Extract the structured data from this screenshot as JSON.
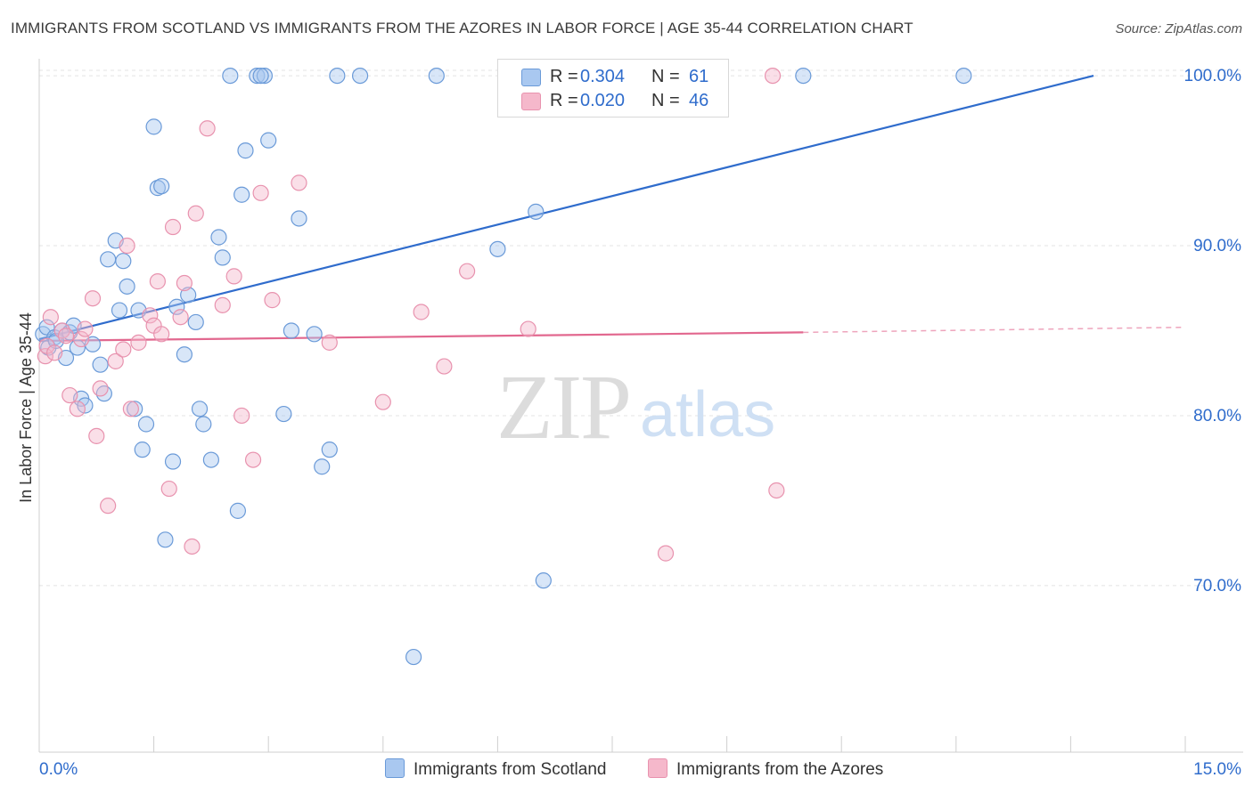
{
  "title": "IMMIGRANTS FROM SCOTLAND VS IMMIGRANTS FROM THE AZORES IN LABOR FORCE | AGE 35-44 CORRELATION CHART",
  "source": "Source: ZipAtlas.com",
  "watermark": {
    "zip": "ZIP",
    "atlas": "atlas"
  },
  "legend": {
    "rows": [
      {
        "r_label": "R = ",
        "r_value": "0.304",
        "n_label": "N = ",
        "n_value": "61"
      },
      {
        "r_label": "R = ",
        "r_value": "0.020",
        "n_label": "N = ",
        "n_value": "46"
      }
    ]
  },
  "bottom_legend": [
    "Immigrants from Scotland",
    "Immigrants from the Azores"
  ],
  "colors": {
    "scotland_fill": "#a9c8f0",
    "scotland_stroke": "#6a9ad8",
    "scotland_line": "#2f6ccc",
    "azores_fill": "#f5b8cb",
    "azores_stroke": "#e892ae",
    "azores_line": "#e2688f",
    "axis_label": "#2f6ccc",
    "grid": "#e3e3e3"
  },
  "chart_data": {
    "type": "scatter",
    "xlabel": "",
    "ylabel": "In Labor Force | Age 35-44",
    "xlim": [
      0,
      15
    ],
    "ylim": [
      60.2,
      101
    ],
    "x_tick_labels": [
      "0.0%",
      "15.0%"
    ],
    "y_ticks": [
      70,
      80,
      90,
      100
    ],
    "y_tick_labels": [
      "70.0%",
      "80.0%",
      "90.0%",
      "100.0%"
    ],
    "series": [
      {
        "name": "Immigrants from Scotland",
        "r": 0.304,
        "n": 61,
        "trend": {
          "x": [
            0,
            13.8
          ],
          "y": [
            84.5,
            100.0
          ],
          "dashed_to": null
        },
        "points": [
          [
            0.05,
            84.8
          ],
          [
            0.1,
            85.2
          ],
          [
            0.12,
            84.0
          ],
          [
            0.2,
            84.6
          ],
          [
            0.22,
            84.4
          ],
          [
            0.3,
            85.0
          ],
          [
            0.35,
            83.4
          ],
          [
            0.4,
            84.9
          ],
          [
            0.45,
            85.3
          ],
          [
            0.5,
            84.0
          ],
          [
            0.55,
            81.0
          ],
          [
            0.6,
            80.6
          ],
          [
            0.7,
            84.2
          ],
          [
            0.8,
            83.0
          ],
          [
            0.85,
            81.3
          ],
          [
            0.9,
            89.2
          ],
          [
            1.0,
            90.3
          ],
          [
            1.05,
            86.2
          ],
          [
            1.1,
            89.1
          ],
          [
            1.15,
            87.6
          ],
          [
            1.25,
            80.4
          ],
          [
            1.3,
            86.2
          ],
          [
            1.35,
            78.0
          ],
          [
            1.4,
            79.5
          ],
          [
            1.5,
            97.0
          ],
          [
            1.55,
            93.4
          ],
          [
            1.6,
            93.5
          ],
          [
            1.65,
            72.7
          ],
          [
            1.75,
            77.3
          ],
          [
            1.8,
            86.4
          ],
          [
            1.9,
            83.6
          ],
          [
            1.95,
            87.1
          ],
          [
            2.05,
            85.5
          ],
          [
            2.1,
            80.4
          ],
          [
            2.15,
            79.5
          ],
          [
            2.25,
            77.4
          ],
          [
            2.35,
            90.5
          ],
          [
            2.4,
            89.3
          ],
          [
            2.5,
            100.0
          ],
          [
            2.6,
            74.4
          ],
          [
            2.65,
            93.0
          ],
          [
            2.7,
            95.6
          ],
          [
            2.85,
            100.0
          ],
          [
            2.95,
            100.0
          ],
          [
            3.0,
            96.2
          ],
          [
            3.2,
            80.1
          ],
          [
            3.3,
            85.0
          ],
          [
            3.4,
            91.6
          ],
          [
            3.6,
            84.8
          ],
          [
            3.7,
            77.0
          ],
          [
            3.8,
            78.0
          ],
          [
            3.9,
            100.0
          ],
          [
            4.2,
            100.0
          ],
          [
            4.9,
            65.8
          ],
          [
            5.2,
            100.0
          ],
          [
            6.0,
            89.8
          ],
          [
            6.5,
            92.0
          ],
          [
            6.6,
            70.3
          ],
          [
            10.0,
            100.0
          ],
          [
            12.1,
            100.0
          ],
          [
            2.9,
            100.0
          ]
        ]
      },
      {
        "name": "Immigrants from the Azores",
        "r": 0.02,
        "n": 46,
        "trend": {
          "x": [
            0,
            10
          ],
          "y": [
            84.4,
            84.9
          ],
          "dashed_to": [
            15,
            85.2
          ]
        },
        "points": [
          [
            0.08,
            83.5
          ],
          [
            0.1,
            84.1
          ],
          [
            0.15,
            85.8
          ],
          [
            0.2,
            83.7
          ],
          [
            0.3,
            85.0
          ],
          [
            0.35,
            84.7
          ],
          [
            0.4,
            81.2
          ],
          [
            0.5,
            80.4
          ],
          [
            0.55,
            84.5
          ],
          [
            0.6,
            85.1
          ],
          [
            0.7,
            86.9
          ],
          [
            0.75,
            78.8
          ],
          [
            0.8,
            81.6
          ],
          [
            0.9,
            74.7
          ],
          [
            1.0,
            83.2
          ],
          [
            1.1,
            83.9
          ],
          [
            1.15,
            90.0
          ],
          [
            1.2,
            80.4
          ],
          [
            1.3,
            84.3
          ],
          [
            1.45,
            85.9
          ],
          [
            1.5,
            85.3
          ],
          [
            1.55,
            87.9
          ],
          [
            1.6,
            84.8
          ],
          [
            1.7,
            75.7
          ],
          [
            1.75,
            91.1
          ],
          [
            1.85,
            85.8
          ],
          [
            1.9,
            87.8
          ],
          [
            2.0,
            72.3
          ],
          [
            2.05,
            91.9
          ],
          [
            2.2,
            96.9
          ],
          [
            2.4,
            86.5
          ],
          [
            2.55,
            88.2
          ],
          [
            2.65,
            80.0
          ],
          [
            2.8,
            77.4
          ],
          [
            2.9,
            93.1
          ],
          [
            3.05,
            86.8
          ],
          [
            3.4,
            93.7
          ],
          [
            3.8,
            84.3
          ],
          [
            4.5,
            80.8
          ],
          [
            5.0,
            86.1
          ],
          [
            5.3,
            82.9
          ],
          [
            5.6,
            88.5
          ],
          [
            6.4,
            85.1
          ],
          [
            8.2,
            71.9
          ],
          [
            9.6,
            100.0
          ],
          [
            9.65,
            75.6
          ]
        ]
      }
    ]
  }
}
